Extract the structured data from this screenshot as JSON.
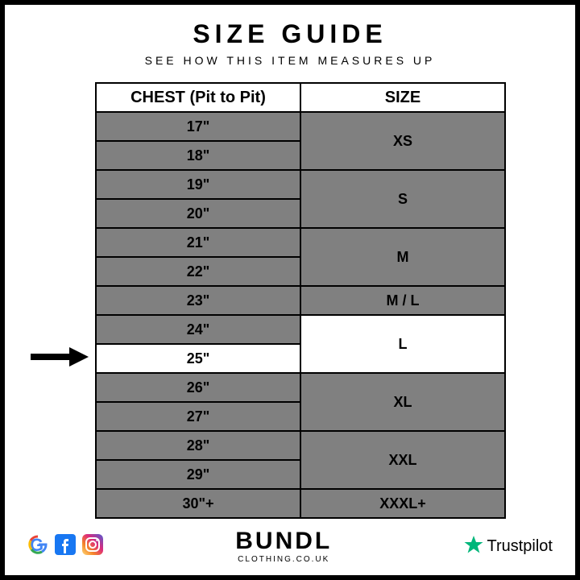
{
  "title": "SIZE GUIDE",
  "subtitle": "SEE HOW THIS ITEM MEASURES UP",
  "table": {
    "header_chest": "CHEST (Pit to Pit)",
    "header_size": "SIZE",
    "rows": [
      {
        "chest": "17\"",
        "size": "XS",
        "span": 2,
        "hl_chest": false,
        "hl_size": false
      },
      {
        "chest": "18\"",
        "hl_chest": false
      },
      {
        "chest": "19\"",
        "size": "S",
        "span": 2,
        "hl_chest": false,
        "hl_size": false
      },
      {
        "chest": "20\"",
        "hl_chest": false
      },
      {
        "chest": "21\"",
        "size": "M",
        "span": 2,
        "hl_chest": false,
        "hl_size": false
      },
      {
        "chest": "22\"",
        "hl_chest": false
      },
      {
        "chest": "23\"",
        "size": "M / L",
        "span": 1,
        "hl_chest": false,
        "hl_size": false
      },
      {
        "chest": "24\"",
        "size": "L",
        "span": 2,
        "hl_chest": false,
        "hl_size": true
      },
      {
        "chest": "25\"",
        "hl_chest": true
      },
      {
        "chest": "26\"",
        "size": "XL",
        "span": 2,
        "hl_chest": false,
        "hl_size": false
      },
      {
        "chest": "27\"",
        "hl_chest": false
      },
      {
        "chest": "28\"",
        "size": "XXL",
        "span": 2,
        "hl_chest": false,
        "hl_size": false
      },
      {
        "chest": "29\"",
        "hl_chest": false
      },
      {
        "chest": "30\"+",
        "size": "XXXL+",
        "span": 1,
        "hl_chest": false,
        "hl_size": false
      }
    ]
  },
  "colors": {
    "cell_bg": "#808080",
    "highlight_bg": "#ffffff",
    "border": "#000000"
  },
  "brand": {
    "main": "BUNDL",
    "sub": "CLOTHING.CO.UK"
  },
  "trust": {
    "label": "Trustpilot",
    "star_color": "#00b67a"
  },
  "socials": {
    "google": {
      "g": "G"
    }
  }
}
